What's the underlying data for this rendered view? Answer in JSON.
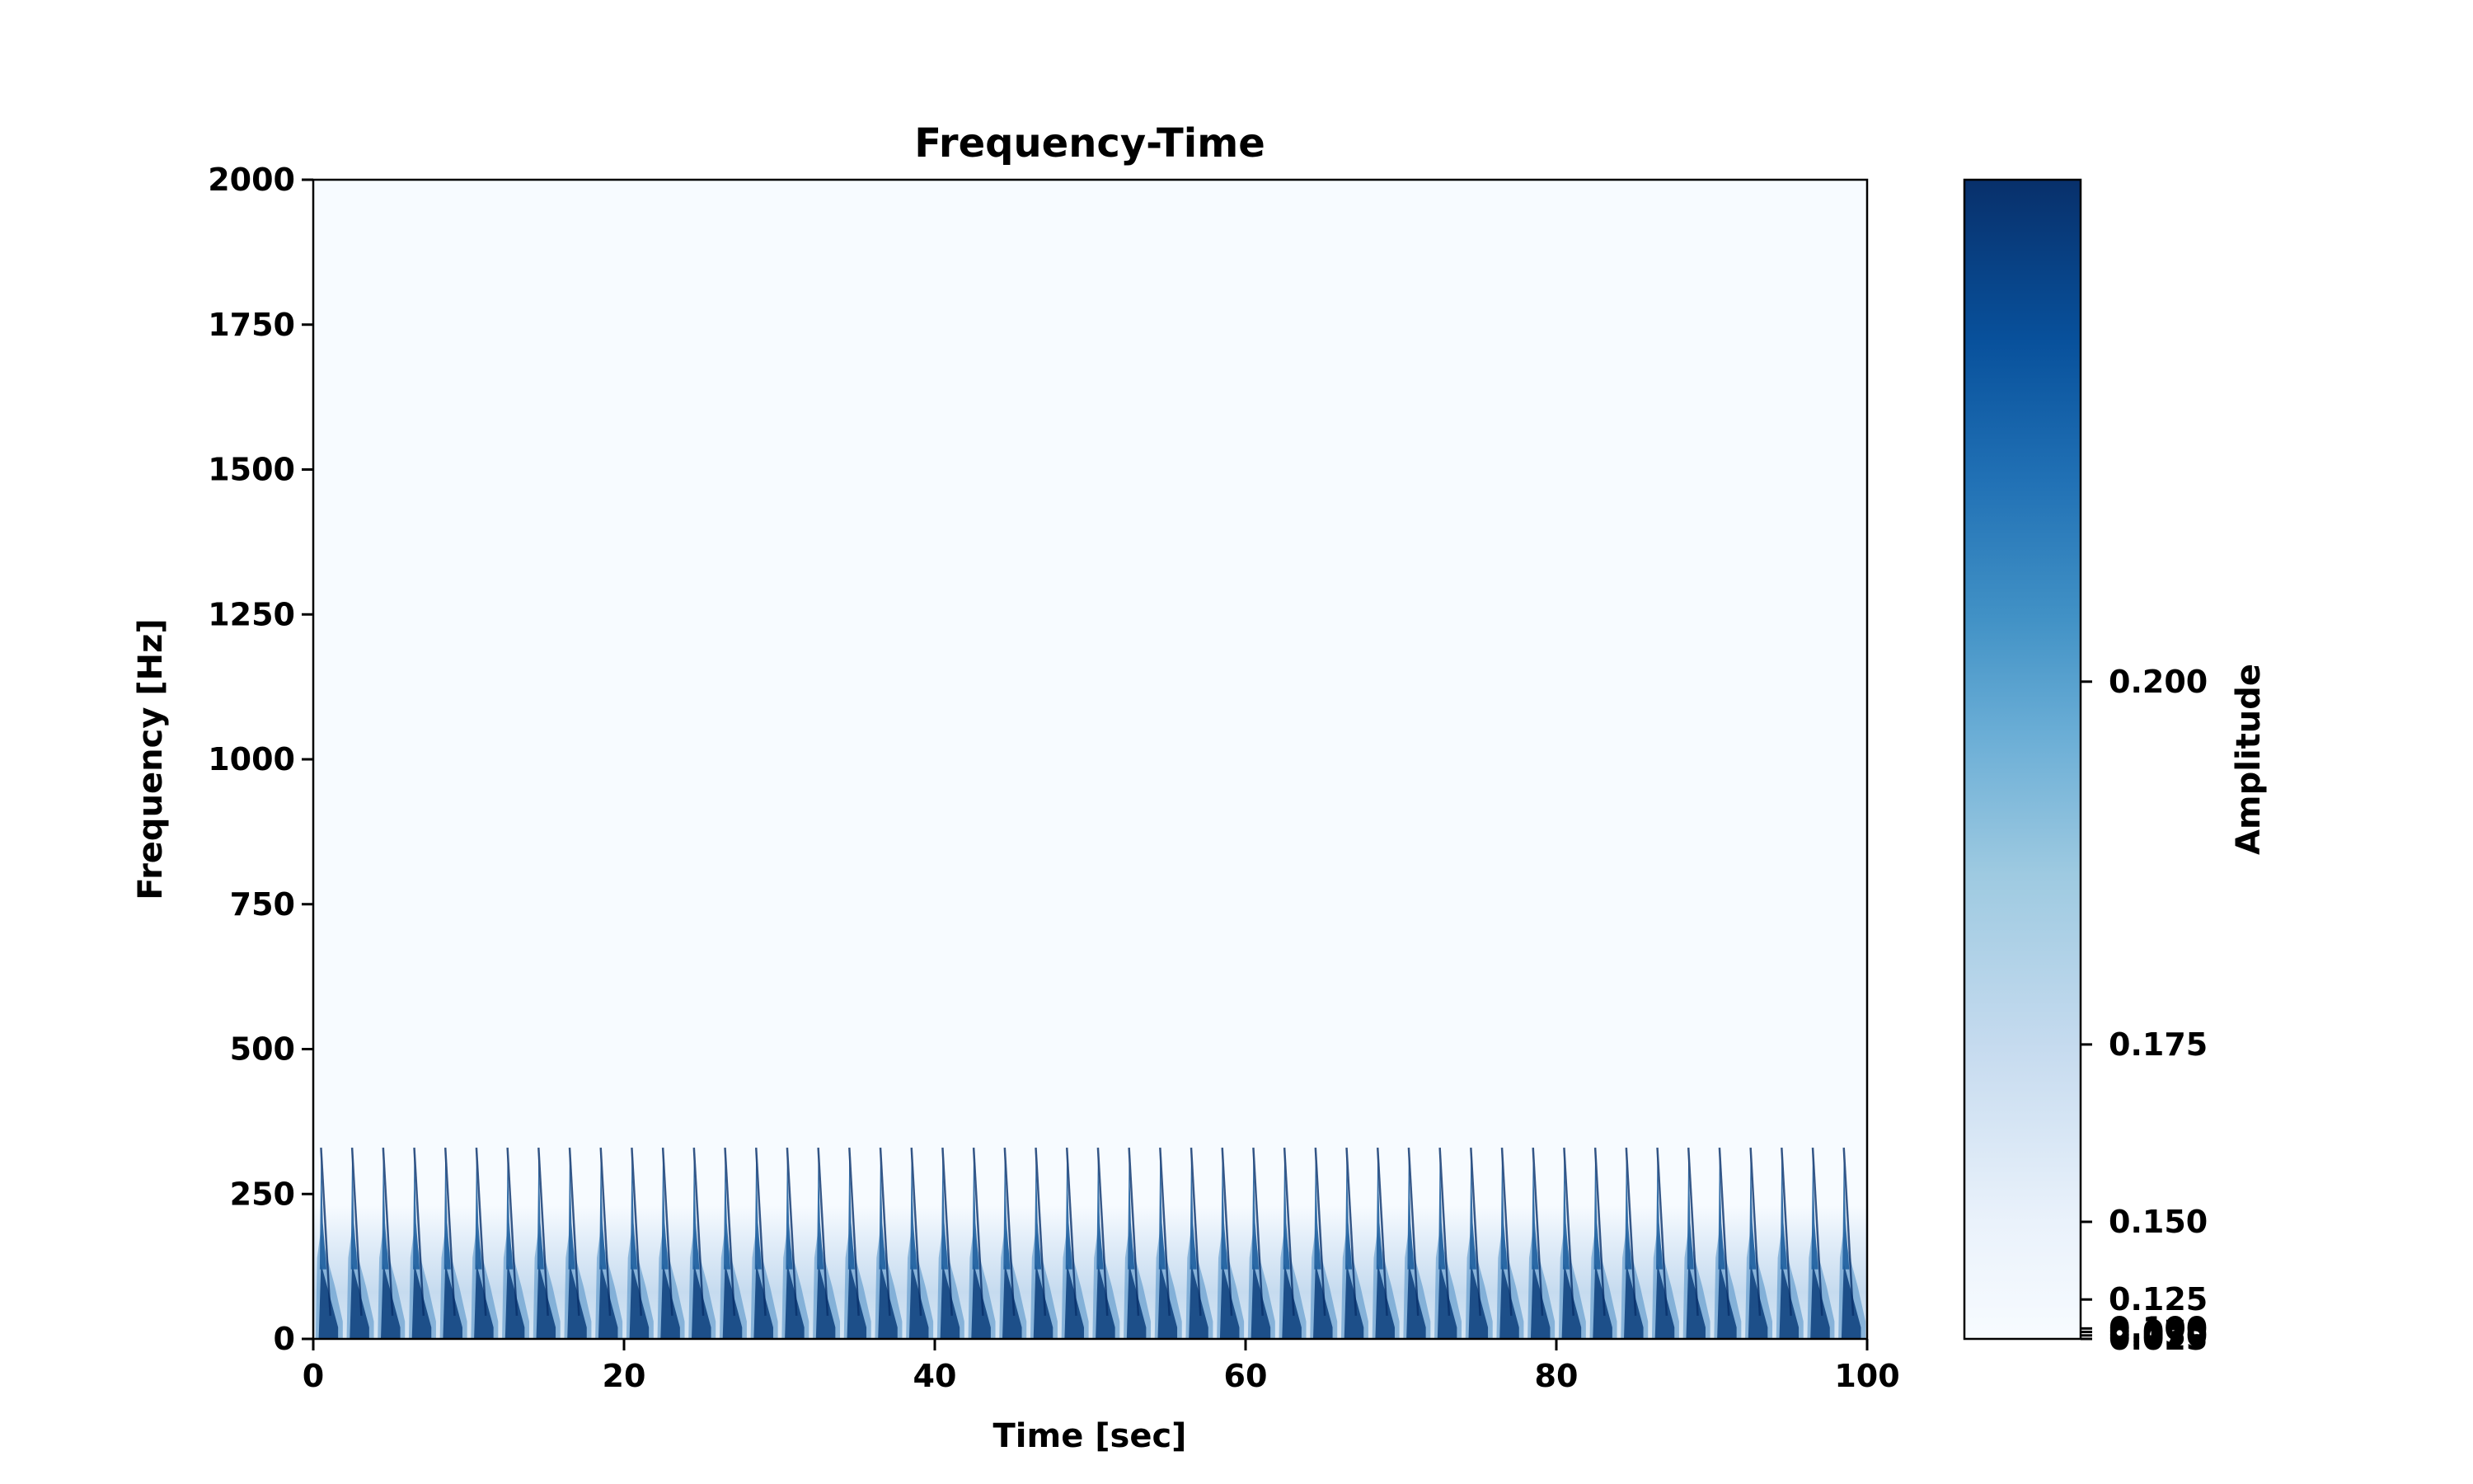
{
  "chart_data": {
    "type": "heatmap",
    "title": "Frequency-Time",
    "xlabel": "Time [sec]",
    "ylabel": "Frequency [Hz]",
    "xlim": [
      0,
      100
    ],
    "ylim": [
      0,
      2000
    ],
    "x_ticks": [
      0,
      20,
      40,
      60,
      80,
      100
    ],
    "y_ticks": [
      0,
      250,
      500,
      750,
      1000,
      1250,
      1500,
      1750,
      2000
    ],
    "colorbar": {
      "label": "Amplitude",
      "colormap": "Blues",
      "ticks": [
        {
          "value": 0.025,
          "label": "0.025",
          "pos": 0.0
        },
        {
          "value": 0.05,
          "label": "0.050",
          "pos": 0.003
        },
        {
          "value": 0.075,
          "label": "0.075",
          "pos": 0.006
        },
        {
          "value": 0.1,
          "label": "0.100",
          "pos": 0.009
        },
        {
          "value": 0.125,
          "label": "0.125",
          "pos": 0.034
        },
        {
          "value": 0.15,
          "label": "0.150",
          "pos": 0.101
        },
        {
          "value": 0.175,
          "label": "0.175",
          "pos": 0.254
        },
        {
          "value": 0.2,
          "label": "0.200",
          "pos": 0.567
        }
      ],
      "colors": [
        "#f7fbff",
        "#deebf7",
        "#c6dbef",
        "#9ecae1",
        "#6baed6",
        "#4292c6",
        "#2171b5",
        "#08519c",
        "#08306b"
      ]
    },
    "pulses": {
      "period_sec": 2.0,
      "first_sec": 0.5,
      "count": 50,
      "peak_hz": 330,
      "dense_band_hz": [
        0,
        190
      ]
    },
    "grid": false
  }
}
